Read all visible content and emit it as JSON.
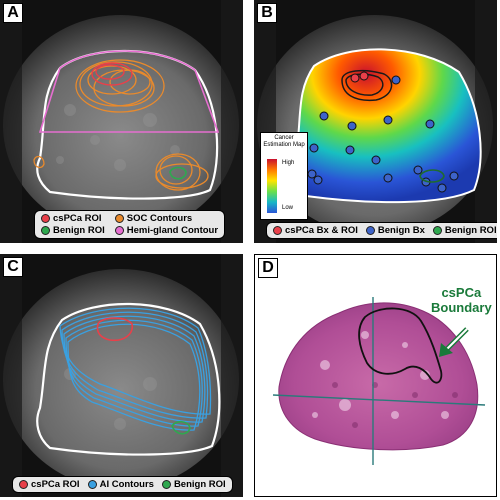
{
  "panels": {
    "a": {
      "label": "A",
      "legend": [
        {
          "text": "csPCa ROI",
          "color": "#e8404a"
        },
        {
          "text": "SOC Contours",
          "color": "#e98a2c"
        },
        {
          "text": "Benign ROI",
          "color": "#2fa84f"
        },
        {
          "text": "Hemi-gland Contour",
          "color": "#e66ed0"
        }
      ]
    },
    "b": {
      "label": "B",
      "colormap": {
        "title": "Cancer Estimation Map",
        "high": "High",
        "low": "Low"
      },
      "legend": [
        {
          "text": "csPCa Bx & ROI",
          "color": "#e8404a"
        },
        {
          "text": "Benign Bx",
          "color": "#3d63c9"
        },
        {
          "text": "Benign ROI",
          "color": "#2fa84f"
        }
      ]
    },
    "c": {
      "label": "C",
      "legend": [
        {
          "text": "csPCa ROI",
          "color": "#e8404a"
        },
        {
          "text": "AI Contours",
          "color": "#3aa0e0"
        },
        {
          "text": "Benign ROI",
          "color": "#2fa84f"
        }
      ]
    },
    "d": {
      "label": "D",
      "annotation_line1": "csPCa",
      "annotation_line2": "Boundary"
    }
  }
}
